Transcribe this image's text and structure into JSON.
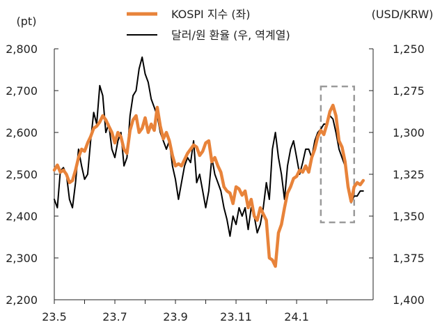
{
  "chart_data": {
    "type": "line",
    "title": "",
    "left_axis_unit": "(pt)",
    "right_axis_unit": "(USD/KRW)",
    "x_ticks": [
      "23.5",
      "23.7",
      "23.9",
      "23.11",
      "24.1"
    ],
    "x_range": [
      0,
      10
    ],
    "left_axis": {
      "range": [
        2200,
        2800
      ],
      "tick_values": [
        2200,
        2300,
        2400,
        2500,
        2600,
        2700,
        2800
      ],
      "tick_labels": [
        "2,200",
        "2,300",
        "2,400",
        "2,500",
        "2,600",
        "2,700",
        "2,800"
      ]
    },
    "right_axis": {
      "range": [
        1250,
        1400
      ],
      "inverted": true,
      "tick_values": [
        1250,
        1275,
        1300,
        1325,
        1350,
        1375,
        1400
      ],
      "tick_labels": [
        "1,250",
        "1,275",
        "1,300",
        "1,325",
        "1,350",
        "1,375",
        "1,400"
      ]
    },
    "highlight_box": {
      "x_range": [
        8.8,
        9.9
      ],
      "left_axis_range": [
        2385,
        2710
      ],
      "style": "dashed"
    },
    "series": [
      {
        "name": "KOSPI 지수 (좌)",
        "axis": "left",
        "color": "#E8833A",
        "points": [
          [
            0.0,
            2510
          ],
          [
            0.1,
            2522
          ],
          [
            0.2,
            2505
          ],
          [
            0.3,
            2510
          ],
          [
            0.4,
            2500
          ],
          [
            0.5,
            2480
          ],
          [
            0.6,
            2485
          ],
          [
            0.7,
            2510
          ],
          [
            0.8,
            2540
          ],
          [
            0.9,
            2560
          ],
          [
            1.0,
            2555
          ],
          [
            1.1,
            2575
          ],
          [
            1.2,
            2590
          ],
          [
            1.3,
            2610
          ],
          [
            1.4,
            2615
          ],
          [
            1.5,
            2625
          ],
          [
            1.6,
            2640
          ],
          [
            1.7,
            2630
          ],
          [
            1.8,
            2615
          ],
          [
            1.9,
            2600
          ],
          [
            2.0,
            2575
          ],
          [
            2.1,
            2600
          ],
          [
            2.2,
            2590
          ],
          [
            2.3,
            2560
          ],
          [
            2.4,
            2550
          ],
          [
            2.5,
            2605
          ],
          [
            2.6,
            2630
          ],
          [
            2.7,
            2640
          ],
          [
            2.8,
            2600
          ],
          [
            2.9,
            2610
          ],
          [
            3.0,
            2635
          ],
          [
            3.1,
            2600
          ],
          [
            3.2,
            2620
          ],
          [
            3.3,
            2605
          ],
          [
            3.4,
            2660
          ],
          [
            3.5,
            2615
          ],
          [
            3.6,
            2585
          ],
          [
            3.7,
            2600
          ],
          [
            3.8,
            2580
          ],
          [
            3.9,
            2545
          ],
          [
            4.0,
            2520
          ],
          [
            4.1,
            2525
          ],
          [
            4.2,
            2520
          ],
          [
            4.3,
            2535
          ],
          [
            4.4,
            2550
          ],
          [
            4.5,
            2560
          ],
          [
            4.6,
            2570
          ],
          [
            4.7,
            2565
          ],
          [
            4.8,
            2545
          ],
          [
            4.9,
            2555
          ],
          [
            5.0,
            2575
          ],
          [
            5.1,
            2580
          ],
          [
            5.2,
            2530
          ],
          [
            5.3,
            2540
          ],
          [
            5.4,
            2520
          ],
          [
            5.5,
            2505
          ],
          [
            5.6,
            2470
          ],
          [
            5.7,
            2460
          ],
          [
            5.8,
            2455
          ],
          [
            5.9,
            2430
          ],
          [
            6.0,
            2470
          ],
          [
            6.1,
            2465
          ],
          [
            6.2,
            2450
          ],
          [
            6.3,
            2460
          ],
          [
            6.4,
            2420
          ],
          [
            6.5,
            2440
          ],
          [
            6.6,
            2400
          ],
          [
            6.7,
            2390
          ],
          [
            6.8,
            2420
          ],
          [
            6.9,
            2405
          ],
          [
            7.0,
            2390
          ],
          [
            7.1,
            2300
          ],
          [
            7.2,
            2295
          ],
          [
            7.3,
            2280
          ],
          [
            7.4,
            2360
          ],
          [
            7.5,
            2380
          ],
          [
            7.6,
            2420
          ],
          [
            7.7,
            2455
          ],
          [
            7.8,
            2470
          ],
          [
            7.9,
            2490
          ],
          [
            8.0,
            2495
          ],
          [
            8.1,
            2510
          ],
          [
            8.2,
            2505
          ],
          [
            8.3,
            2520
          ],
          [
            8.4,
            2505
          ],
          [
            8.5,
            2540
          ],
          [
            8.6,
            2560
          ],
          [
            8.7,
            2590
          ],
          [
            8.8,
            2605
          ],
          [
            8.9,
            2595
          ],
          [
            9.0,
            2620
          ],
          [
            9.1,
            2650
          ],
          [
            9.2,
            2665
          ],
          [
            9.3,
            2640
          ],
          [
            9.4,
            2580
          ],
          [
            9.5,
            2565
          ],
          [
            9.6,
            2530
          ],
          [
            9.7,
            2470
          ],
          [
            9.8,
            2435
          ],
          [
            9.9,
            2470
          ],
          [
            10.0,
            2480
          ],
          [
            10.1,
            2475
          ],
          [
            10.2,
            2485
          ]
        ]
      },
      {
        "name": "달러/원 환율 (우, 역계열)",
        "axis": "right",
        "color": "#000000",
        "points": [
          [
            0.0,
            1340
          ],
          [
            0.1,
            1345
          ],
          [
            0.2,
            1323
          ],
          [
            0.3,
            1321
          ],
          [
            0.4,
            1325
          ],
          [
            0.5,
            1340
          ],
          [
            0.6,
            1345
          ],
          [
            0.7,
            1330
          ],
          [
            0.8,
            1310
          ],
          [
            0.9,
            1320
          ],
          [
            1.0,
            1328
          ],
          [
            1.1,
            1325
          ],
          [
            1.2,
            1305
          ],
          [
            1.3,
            1288
          ],
          [
            1.4,
            1295
          ],
          [
            1.5,
            1272
          ],
          [
            1.6,
            1278
          ],
          [
            1.7,
            1300
          ],
          [
            1.8,
            1295
          ],
          [
            1.9,
            1310
          ],
          [
            2.0,
            1315
          ],
          [
            2.1,
            1305
          ],
          [
            2.2,
            1300
          ],
          [
            2.3,
            1320
          ],
          [
            2.4,
            1315
          ],
          [
            2.5,
            1290
          ],
          [
            2.6,
            1278
          ],
          [
            2.7,
            1275
          ],
          [
            2.8,
            1262
          ],
          [
            2.9,
            1255
          ],
          [
            3.0,
            1265
          ],
          [
            3.1,
            1270
          ],
          [
            3.2,
            1280
          ],
          [
            3.3,
            1285
          ],
          [
            3.4,
            1290
          ],
          [
            3.5,
            1300
          ],
          [
            3.6,
            1305
          ],
          [
            3.7,
            1310
          ],
          [
            3.8,
            1305
          ],
          [
            3.9,
            1320
          ],
          [
            4.0,
            1328
          ],
          [
            4.1,
            1340
          ],
          [
            4.2,
            1330
          ],
          [
            4.3,
            1320
          ],
          [
            4.4,
            1315
          ],
          [
            4.5,
            1318
          ],
          [
            4.6,
            1305
          ],
          [
            4.7,
            1330
          ],
          [
            4.8,
            1325
          ],
          [
            4.9,
            1335
          ],
          [
            5.0,
            1345
          ],
          [
            5.1,
            1335
          ],
          [
            5.2,
            1315
          ],
          [
            5.3,
            1325
          ],
          [
            5.4,
            1330
          ],
          [
            5.5,
            1335
          ],
          [
            5.6,
            1345
          ],
          [
            5.7,
            1352
          ],
          [
            5.8,
            1362
          ],
          [
            5.9,
            1350
          ],
          [
            6.0,
            1355
          ],
          [
            6.1,
            1345
          ],
          [
            6.2,
            1350
          ],
          [
            6.3,
            1345
          ],
          [
            6.4,
            1358
          ],
          [
            6.5,
            1345
          ],
          [
            6.6,
            1350
          ],
          [
            6.7,
            1360
          ],
          [
            6.8,
            1355
          ],
          [
            6.9,
            1345
          ],
          [
            7.0,
            1330
          ],
          [
            7.1,
            1340
          ],
          [
            7.2,
            1310
          ],
          [
            7.3,
            1300
          ],
          [
            7.4,
            1315
          ],
          [
            7.5,
            1325
          ],
          [
            7.6,
            1340
          ],
          [
            7.7,
            1320
          ],
          [
            7.8,
            1310
          ],
          [
            7.9,
            1305
          ],
          [
            8.0,
            1315
          ],
          [
            8.1,
            1325
          ],
          [
            8.2,
            1318
          ],
          [
            8.3,
            1310
          ],
          [
            8.4,
            1310
          ],
          [
            8.5,
            1315
          ],
          [
            8.6,
            1305
          ],
          [
            8.7,
            1300
          ],
          [
            8.8,
            1298
          ],
          [
            8.9,
            1295
          ],
          [
            9.0,
            1295
          ],
          [
            9.1,
            1290
          ],
          [
            9.2,
            1292
          ],
          [
            9.3,
            1300
          ],
          [
            9.4,
            1310
          ],
          [
            9.5,
            1315
          ],
          [
            9.6,
            1320
          ],
          [
            9.7,
            1330
          ],
          [
            9.8,
            1342
          ],
          [
            9.9,
            1338
          ],
          [
            10.0,
            1338
          ],
          [
            10.1,
            1335
          ],
          [
            10.2,
            1335
          ]
        ]
      }
    ]
  }
}
